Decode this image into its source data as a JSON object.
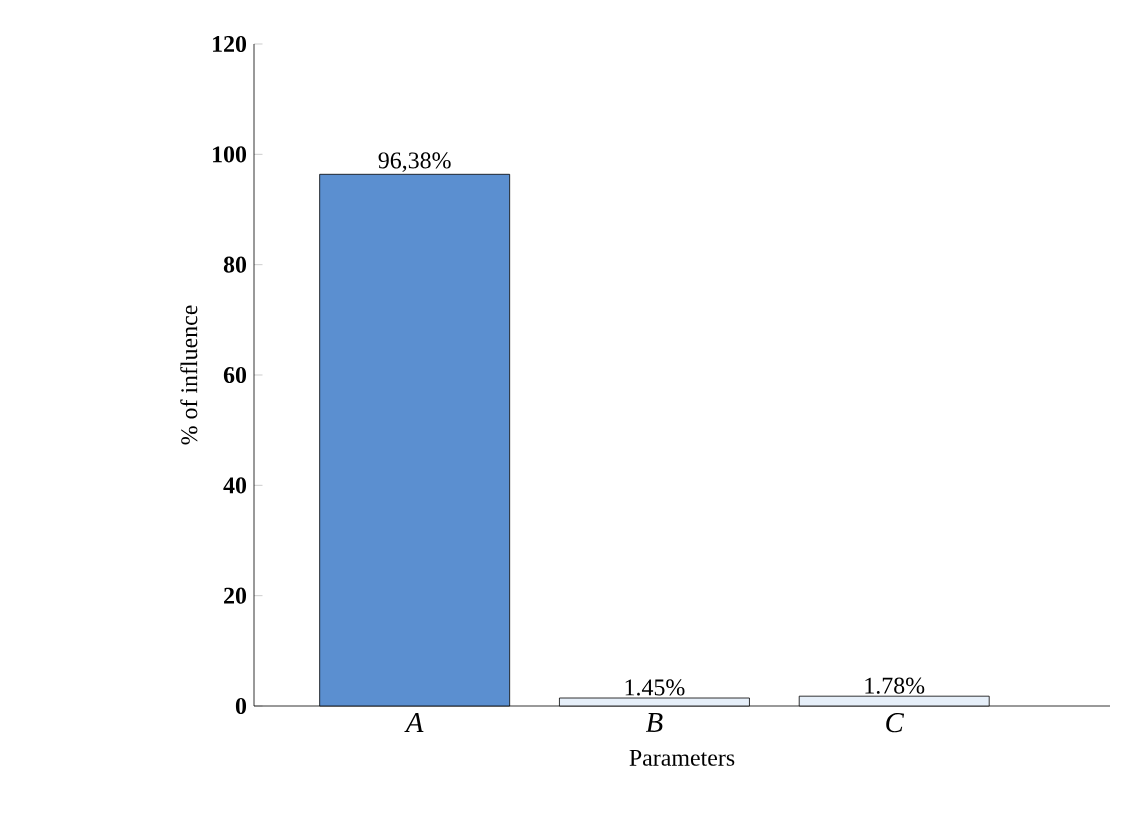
{
  "chart_data": {
    "type": "bar",
    "xlabel": "Parameters",
    "ylabel": "% of influence",
    "categories": [
      "A",
      "B",
      "C"
    ],
    "values": [
      96.38,
      1.45,
      1.78
    ],
    "colors": [
      "#5b8fd0",
      "#e6eff9",
      "#e6eff9"
    ],
    "value_labels": [
      "96,38%",
      "1.45%",
      "1.78%"
    ],
    "ylim": [
      0,
      120
    ],
    "yticks": [
      0,
      20,
      40,
      60,
      80,
      100,
      120
    ]
  }
}
